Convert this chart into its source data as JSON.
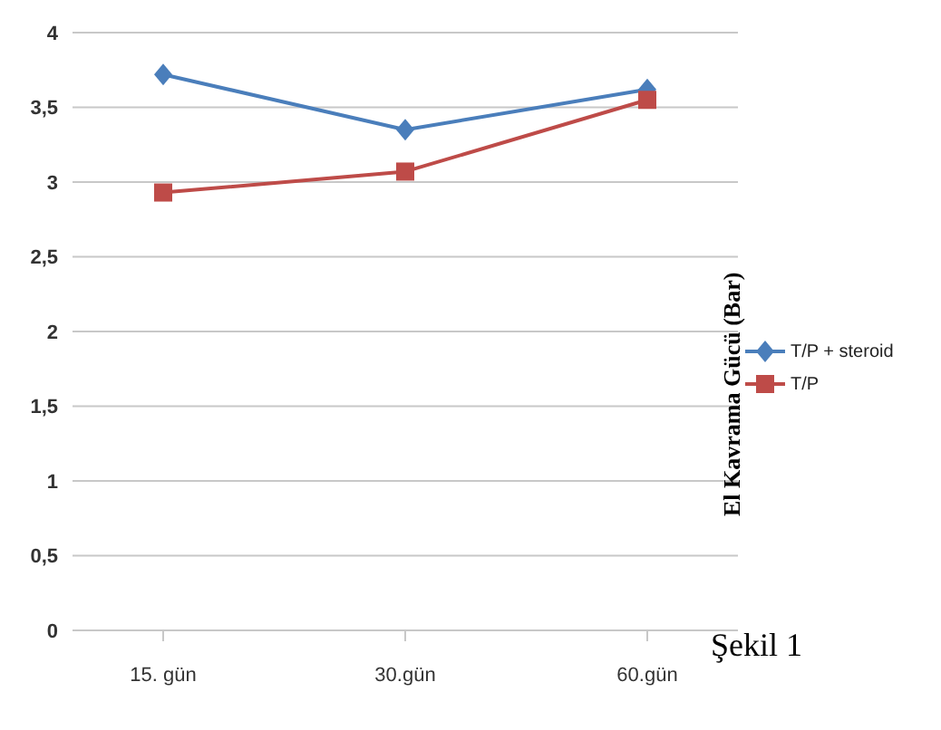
{
  "chart_data": {
    "type": "line",
    "ylabel": "El Kavrama Gücü (Bar)",
    "annotations": [
      "Şekil 1"
    ],
    "categories": [
      "15. gün",
      "30.gün",
      "60.gün"
    ],
    "series": [
      {
        "name": "T/P + steroid",
        "color": "#4a7ebb",
        "marker": "diamond",
        "values": [
          3.72,
          3.35,
          3.62
        ]
      },
      {
        "name": "T/P",
        "color": "#be4b48",
        "marker": "square",
        "values": [
          2.93,
          3.07,
          3.55
        ]
      }
    ],
    "ylim": [
      0,
      4
    ],
    "yticks": [
      0,
      {
        "value": 0.5,
        "label": "0,5"
      },
      1,
      {
        "value": 1.5,
        "label": "1,5"
      },
      2,
      {
        "value": 2.5,
        "label": "2,5"
      },
      3,
      {
        "value": 3.5,
        "label": "3,5"
      },
      4
    ],
    "grid": "y",
    "legend": "right",
    "line_style": "solid"
  }
}
